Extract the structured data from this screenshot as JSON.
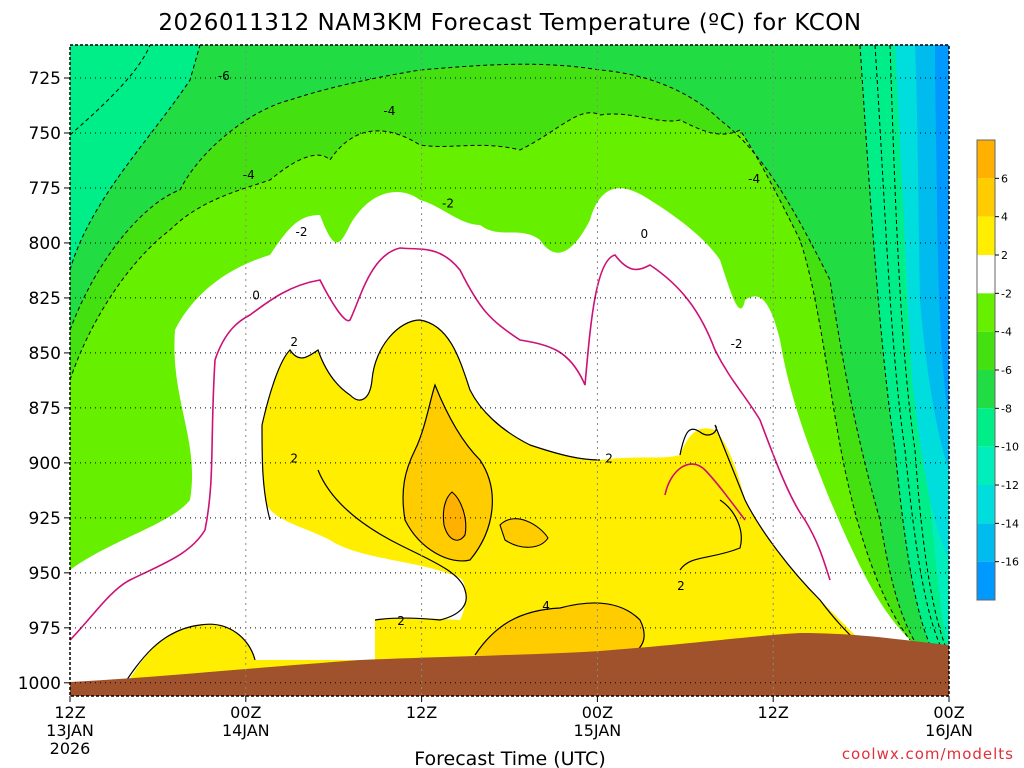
{
  "chart_data": {
    "type": "heatmap",
    "title": "2026011312 NAM3KM Forecast Temperature (ºC) for KCON",
    "xlabel": "Forecast Time (UTC)",
    "ylabel": "",
    "y_axis": {
      "unit": "hPa",
      "inverted": true,
      "range": [
        1006,
        710
      ],
      "ticks": [
        725,
        750,
        775,
        800,
        825,
        850,
        875,
        900,
        925,
        950,
        975,
        1000
      ]
    },
    "x_axis": {
      "range_hours": [
        0,
        60
      ],
      "ticks": [
        {
          "hour": 0,
          "line1": "12Z",
          "line2": "13JAN",
          "line3": "2026"
        },
        {
          "hour": 12,
          "line1": "00Z",
          "line2": "14JAN",
          "line3": ""
        },
        {
          "hour": 24,
          "line1": "12Z",
          "line2": "",
          "line3": ""
        },
        {
          "hour": 36,
          "line1": "00Z",
          "line2": "15JAN",
          "line3": ""
        },
        {
          "hour": 48,
          "line1": "12Z",
          "line2": "",
          "line3": ""
        },
        {
          "hour": 60,
          "line1": "00Z",
          "line2": "16JAN",
          "line3": ""
        }
      ]
    },
    "grid": true,
    "colorbar": {
      "placement": "right",
      "labels": [
        "6",
        "4",
        "2",
        "-2",
        "-4",
        "-6",
        "-8",
        "-10",
        "-12",
        "-14",
        "-16"
      ],
      "bins": [
        {
          "range": [
            6,
            8
          ],
          "color": "#ffb000"
        },
        {
          "range": [
            4,
            6
          ],
          "color": "#ffcc00"
        },
        {
          "range": [
            2,
            4
          ],
          "color": "#ffee00"
        },
        {
          "range": [
            -2,
            2
          ],
          "color": "#ffffff"
        },
        {
          "range": [
            -4,
            -2
          ],
          "color": "#66f000"
        },
        {
          "range": [
            -6,
            -4
          ],
          "color": "#44e010"
        },
        {
          "range": [
            -8,
            -6
          ],
          "color": "#22dc44"
        },
        {
          "range": [
            -10,
            -8
          ],
          "color": "#00ee88"
        },
        {
          "range": [
            -12,
            -10
          ],
          "color": "#00eebb"
        },
        {
          "range": [
            -14,
            -12
          ],
          "color": "#00dddd"
        },
        {
          "range": [
            -16,
            -14
          ],
          "color": "#00bbee"
        },
        {
          "range": [
            -18,
            -16
          ],
          "color": "#0099ff"
        }
      ]
    },
    "contour_labels": [
      {
        "text": "-6",
        "hour": 10.5,
        "p": 724
      },
      {
        "text": "-4",
        "hour": 12.2,
        "p": 769
      },
      {
        "text": "-4",
        "hour": 21.8,
        "p": 740
      },
      {
        "text": "-4",
        "hour": 46.7,
        "p": 771
      },
      {
        "text": "-2",
        "hour": 15.8,
        "p": 795
      },
      {
        "text": "-2",
        "hour": 25.8,
        "p": 782
      },
      {
        "text": "-2",
        "hour": 45.5,
        "p": 846
      },
      {
        "text": "0",
        "hour": 12.7,
        "p": 824
      },
      {
        "text": "0",
        "hour": 39.2,
        "p": 796
      },
      {
        "text": "2",
        "hour": 15.3,
        "p": 845
      },
      {
        "text": "2",
        "hour": 15.3,
        "p": 898
      },
      {
        "text": "2",
        "hour": 36.8,
        "p": 898
      },
      {
        "text": "2",
        "hour": 41.7,
        "p": 956
      },
      {
        "text": "2",
        "hour": 22.6,
        "p": 972
      },
      {
        "text": "4",
        "hour": 32.5,
        "p": 965
      }
    ],
    "terrain_color": "#a0522d",
    "credit": "coolwx.com/modelts"
  }
}
